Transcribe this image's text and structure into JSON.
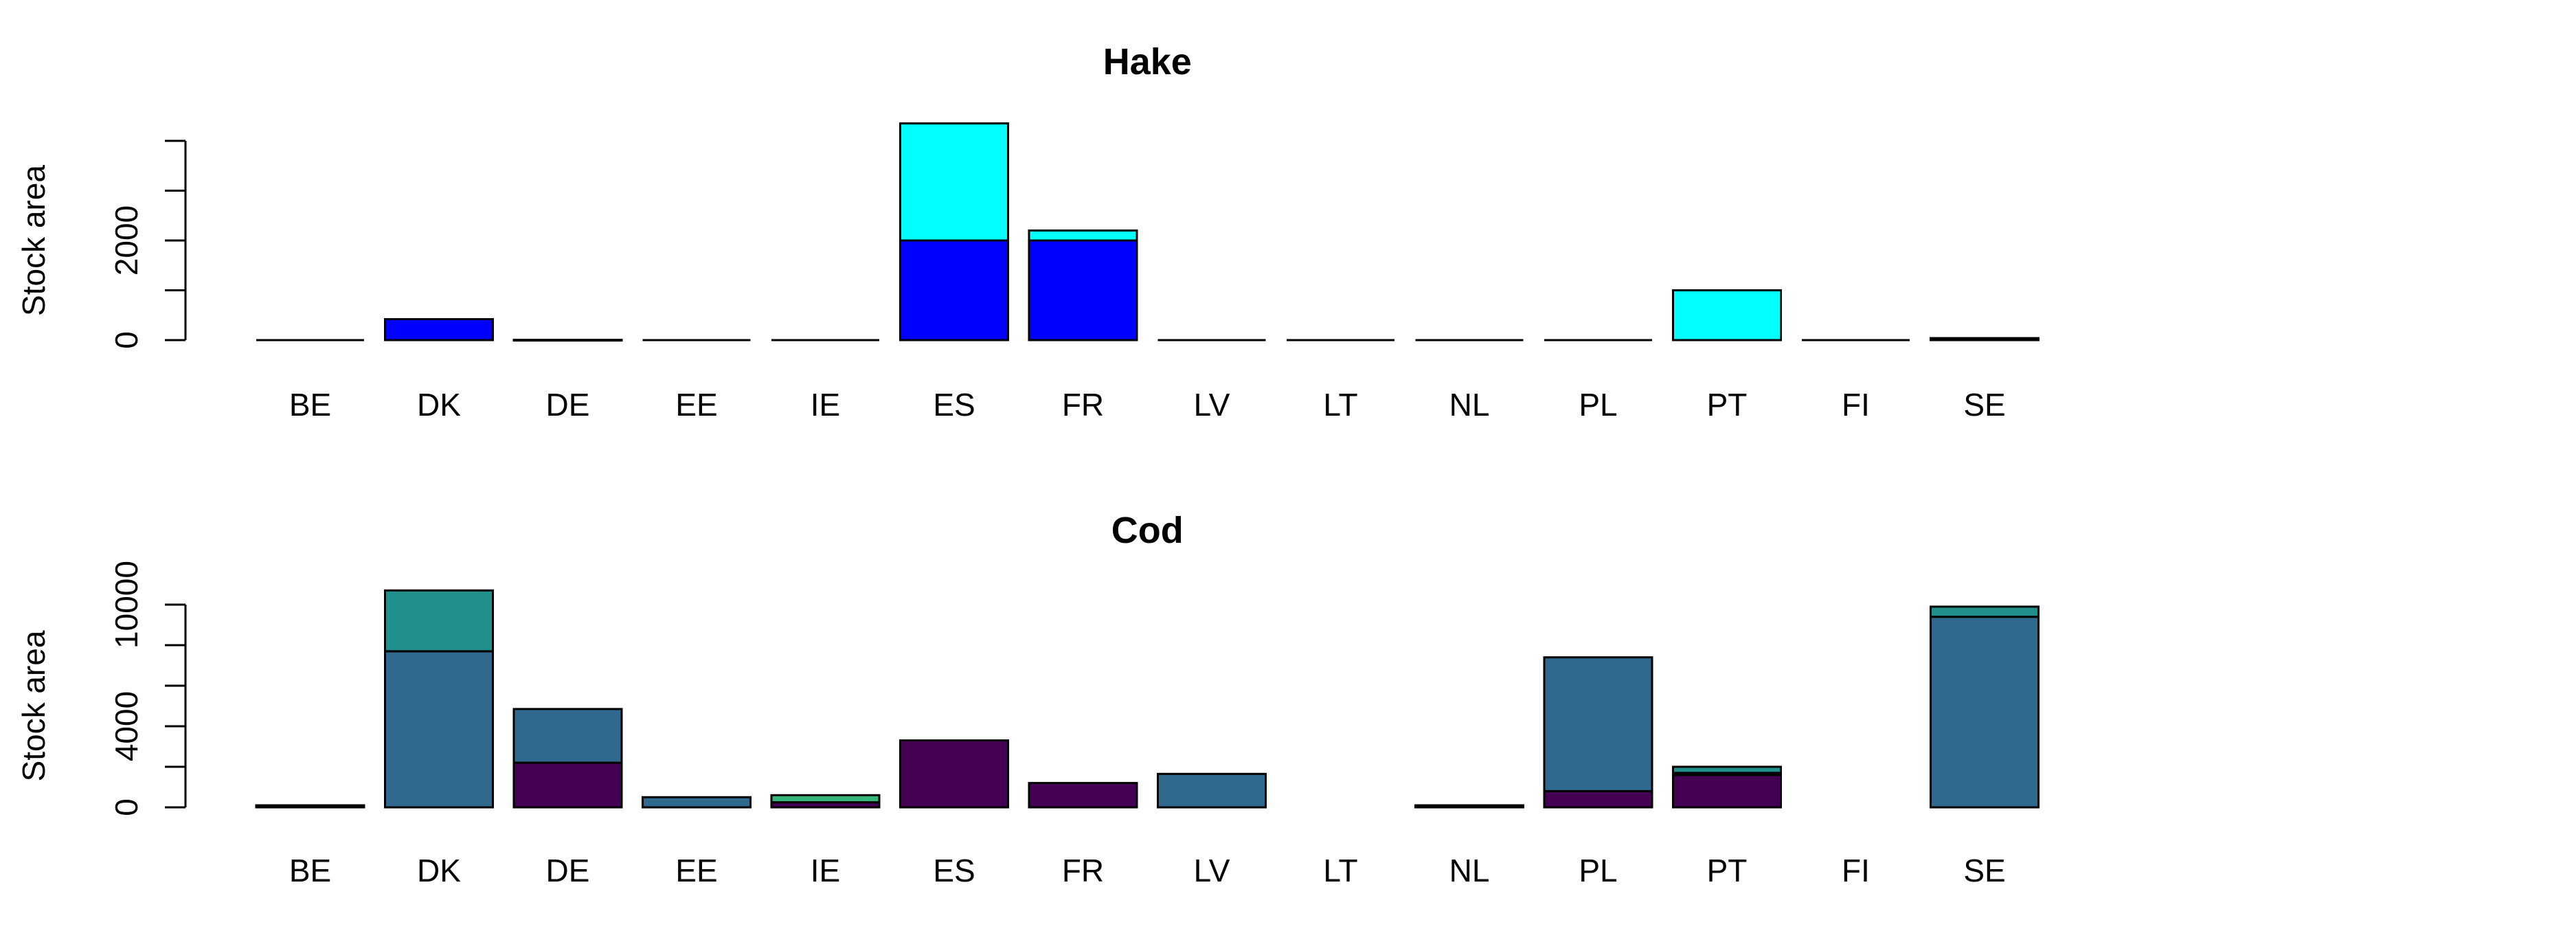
{
  "chart_data": [
    {
      "type": "bar",
      "stacked": true,
      "title": "Hake",
      "xlabel": "",
      "ylabel": "Stock area",
      "ylim": [
        0,
        4000
      ],
      "yticks": [
        0,
        1000,
        2000,
        3000,
        4000
      ],
      "ytick_labels": [
        "0",
        "",
        "2000",
        "",
        ""
      ],
      "categories": [
        "BE",
        "DK",
        "DE",
        "EE",
        "IE",
        "ES",
        "FR",
        "LV",
        "LT",
        "NL",
        "PL",
        "PT",
        "FI",
        "SE"
      ],
      "series": [
        {
          "color": "#0000FF",
          "values": [
            0,
            420,
            5,
            0,
            0,
            2000,
            2000,
            0,
            0,
            0,
            0,
            0,
            0,
            40
          ]
        },
        {
          "color": "#00FFFF",
          "values": [
            0,
            0,
            0,
            0,
            0,
            2350,
            200,
            0,
            0,
            0,
            0,
            1000,
            0,
            0
          ]
        }
      ]
    },
    {
      "type": "bar",
      "stacked": true,
      "title": "Cod",
      "xlabel": "",
      "ylabel": "Stock area",
      "ylim": [
        0,
        10000
      ],
      "yticks": [
        0,
        2000,
        4000,
        6000,
        8000,
        10000
      ],
      "ytick_labels": [
        "0",
        "",
        "4000",
        "",
        "",
        "10000"
      ],
      "categories": [
        "BE",
        "DK",
        "DE",
        "EE",
        "IE",
        "ES",
        "FR",
        "LV",
        "LT",
        "NL",
        "PL",
        "PT",
        "FI",
        "SE"
      ],
      "series": [
        {
          "color": "#440154",
          "values": [
            0,
            0,
            2200,
            0,
            250,
            3300,
            1200,
            0,
            0,
            0,
            800,
            1600,
            0,
            0
          ]
        },
        {
          "color": "#31688E",
          "values": [
            100,
            7700,
            2650,
            500,
            0,
            0,
            0,
            1650,
            0,
            100,
            6600,
            0,
            0,
            9400
          ]
        },
        {
          "color": "#35B779",
          "values": [
            0,
            0,
            0,
            0,
            350,
            0,
            0,
            0,
            0,
            0,
            0,
            100,
            0,
            0
          ]
        },
        {
          "color": "#21908C",
          "values": [
            0,
            3000,
            0,
            0,
            0,
            0,
            0,
            0,
            0,
            0,
            0,
            300,
            0,
            500
          ]
        }
      ]
    }
  ]
}
